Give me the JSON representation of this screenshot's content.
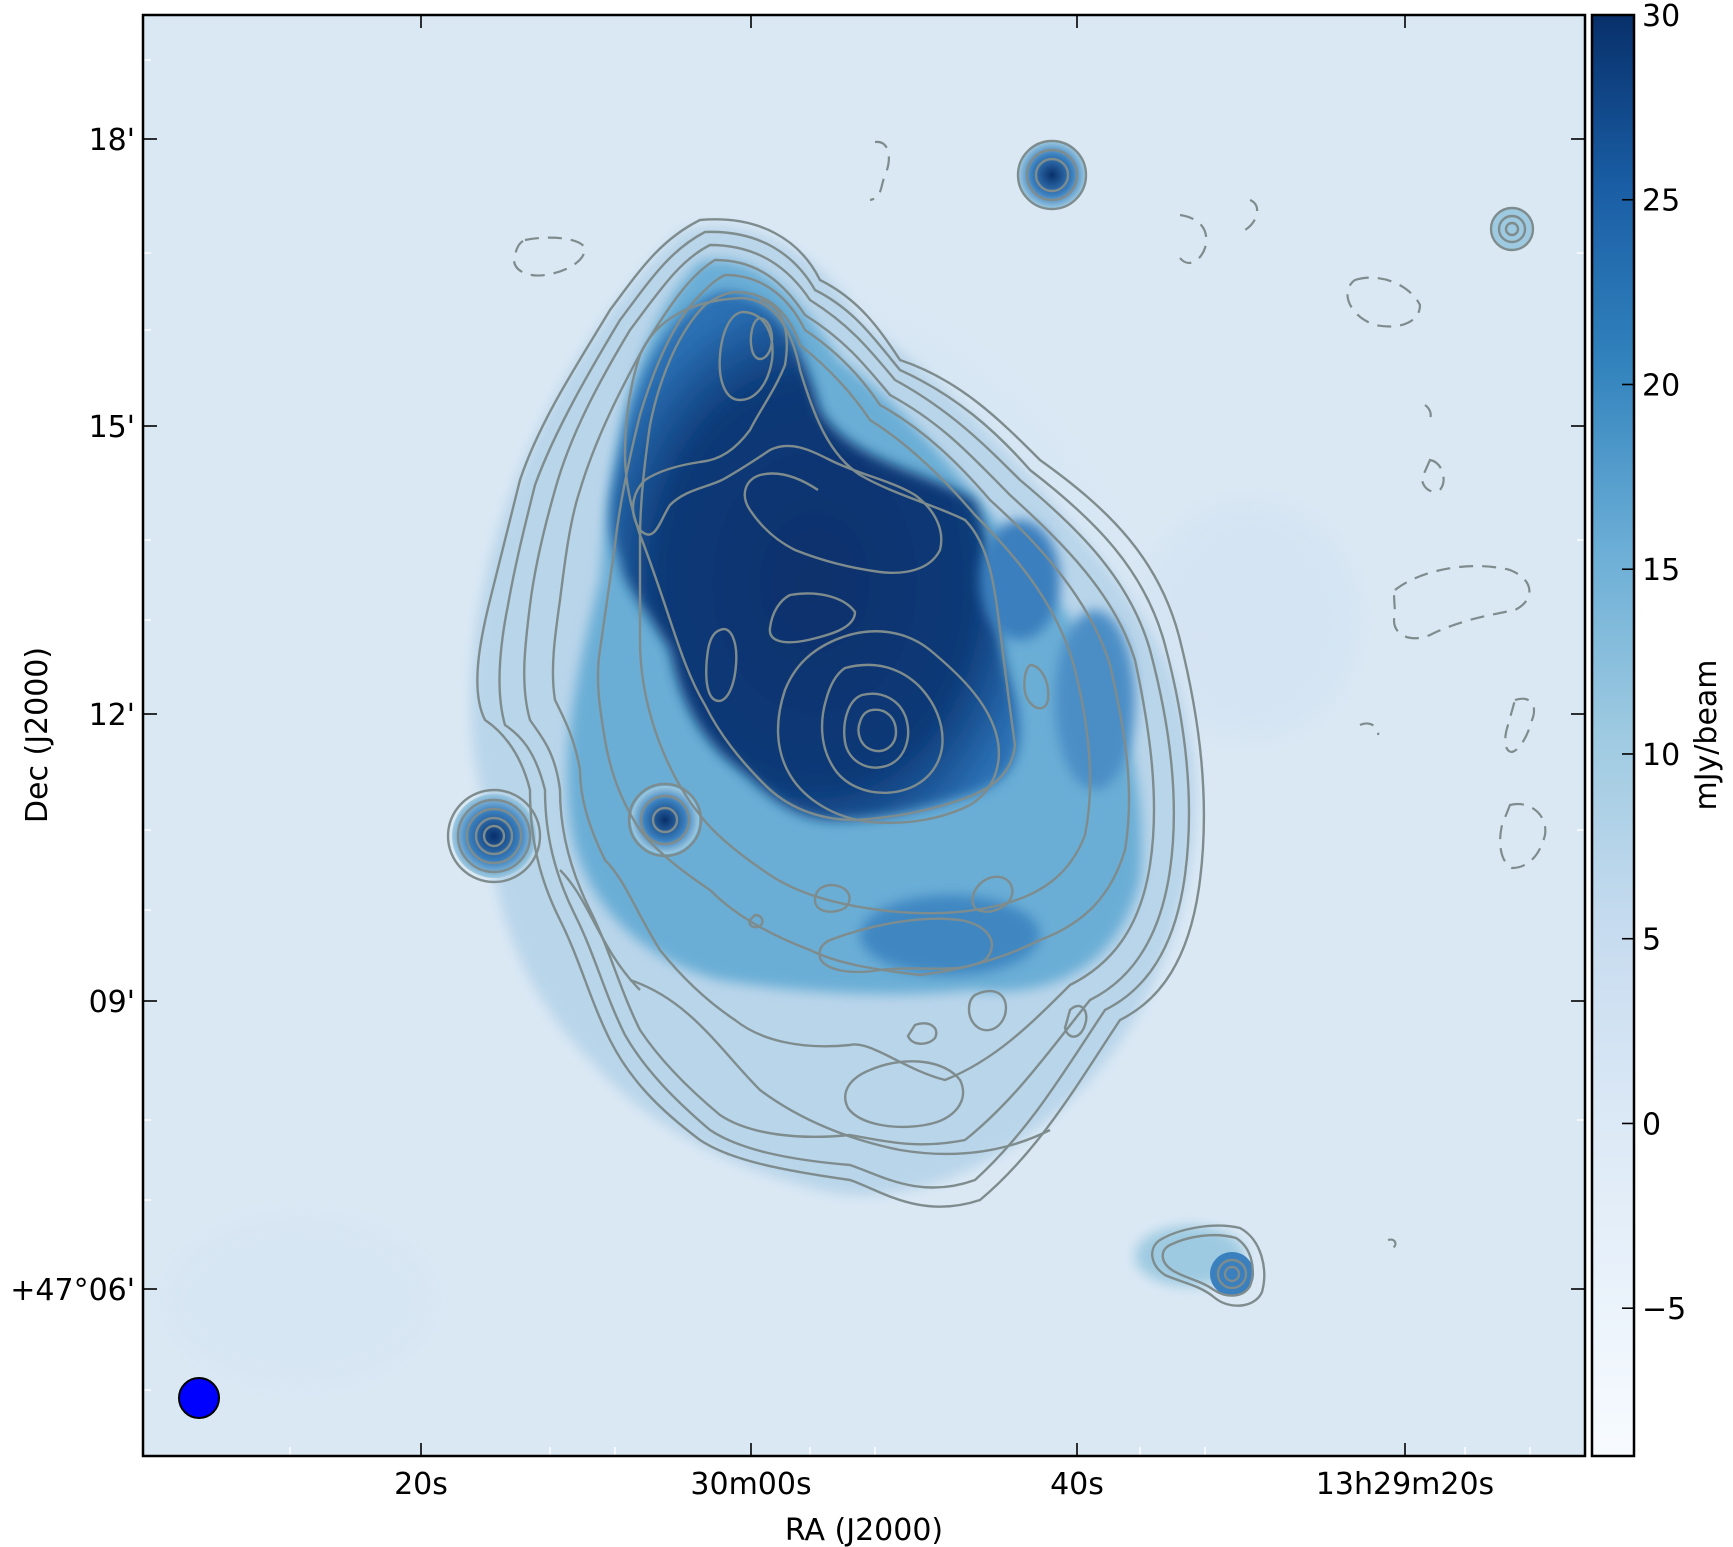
{
  "chart_data": {
    "type": "heatmap",
    "title": "",
    "xlabel": "RA (J2000)",
    "ylabel": "Dec (J2000)",
    "x_ticks": [
      "20s",
      "30m00s",
      "40s",
      "13h29m20s"
    ],
    "y_ticks": [
      "+47°06'",
      "09'",
      "12'",
      "15'",
      "18'"
    ],
    "colorbar": {
      "label": "mJy/beam",
      "ticks": [
        "30",
        "25",
        "20",
        "15",
        "10",
        "5",
        "0",
        "−5"
      ],
      "range": [
        -9,
        30
      ],
      "colormap": "Blues"
    },
    "contours": {
      "color": "#7f8c8d",
      "negative_style": "dashed"
    },
    "beam": {
      "color": "#0000ff"
    }
  }
}
